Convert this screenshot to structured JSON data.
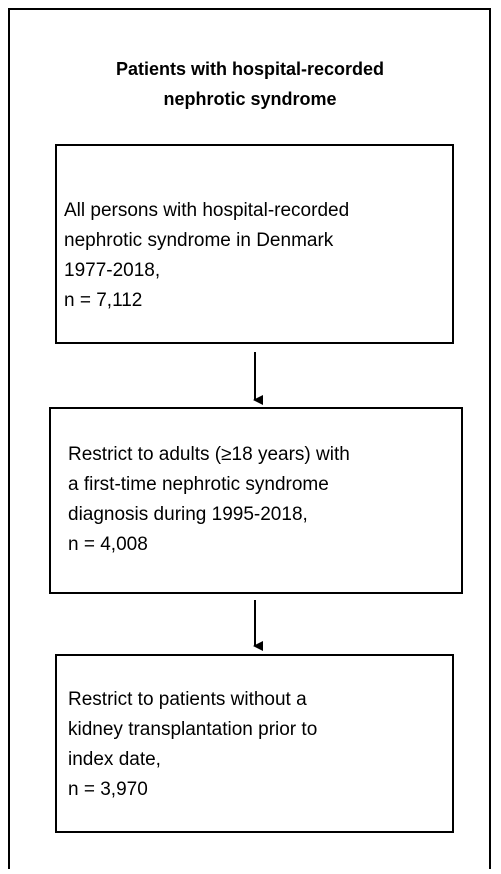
{
  "title": {
    "lines": [
      "Patients with hospital-recorded",
      "nephrotic syndrome"
    ]
  },
  "nodes": [
    {
      "lines": [
        "All persons with hospital-recorded",
        "nephrotic syndrome in Denmark",
        "1977-2018,",
        "n = 7,112"
      ]
    },
    {
      "lines": [
        "Restrict to adults (≥18 years) with",
        "a first-time nephrotic syndrome",
        "diagnosis during 1995-2018,",
        "n = 4,008"
      ]
    },
    {
      "lines": [
        "Restrict to patients without a",
        "kidney transplantation prior to",
        "index date,",
        "n = 3,970"
      ]
    }
  ]
}
